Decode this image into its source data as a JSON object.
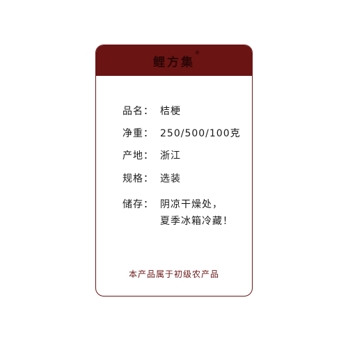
{
  "brand": {
    "name": "鲤方集",
    "registered_mark": "®"
  },
  "info": {
    "name_label": "品名：",
    "name_value": "桔梗",
    "weight_label": "净重：",
    "weight_value": "250/500/100克",
    "origin_label": "产地：",
    "origin_value": "浙江",
    "spec_label": "规格：",
    "spec_value": "选装",
    "storage_label": "储存：",
    "storage_value_line1": "阴凉干燥处，",
    "storage_value_line2": "夏季冰箱冷藏！"
  },
  "footer": {
    "note": "本产品属于初级农产品"
  },
  "colors": {
    "header": "#6b1414",
    "border": "#6b1414",
    "footer_text": "#6b1414"
  }
}
